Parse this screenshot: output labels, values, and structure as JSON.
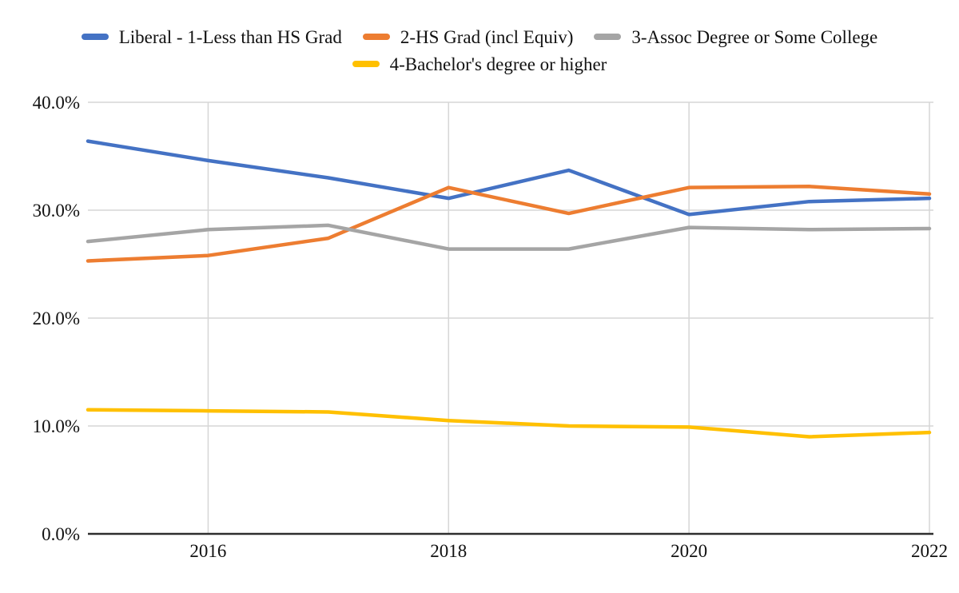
{
  "chart_data": {
    "type": "line",
    "title": "",
    "xlabel": "",
    "ylabel": "",
    "x": [
      2015,
      2016,
      2017,
      2018,
      2019,
      2020,
      2021,
      2022
    ],
    "series": [
      {
        "name": "Liberal - 1-Less than HS Grad",
        "color": "#4472C4",
        "values": [
          36.4,
          34.6,
          33.0,
          31.1,
          33.7,
          29.6,
          30.8,
          31.1
        ]
      },
      {
        "name": "2-HS Grad (incl Equiv)",
        "color": "#ED7D31",
        "values": [
          25.3,
          25.8,
          27.4,
          32.1,
          29.7,
          32.1,
          32.2,
          31.5
        ]
      },
      {
        "name": "3-Assoc Degree or Some College",
        "color": "#A5A5A5",
        "values": [
          27.1,
          28.2,
          28.6,
          26.4,
          26.4,
          28.4,
          28.2,
          28.3
        ]
      },
      {
        "name": "4-Bachelor's degree or higher",
        "color": "#FFC000",
        "values": [
          11.5,
          11.4,
          11.3,
          10.5,
          10.0,
          9.9,
          9.0,
          9.4
        ]
      }
    ],
    "xlim": [
      2015,
      2022
    ],
    "ylim": [
      0,
      40
    ],
    "x_ticks": [
      {
        "value": 2016,
        "label": "2016"
      },
      {
        "value": 2018,
        "label": "2018"
      },
      {
        "value": 2020,
        "label": "2020"
      },
      {
        "value": 2022,
        "label": "2022"
      }
    ],
    "y_ticks": [
      {
        "value": 40,
        "label": "40.0%"
      },
      {
        "value": 30,
        "label": "30.0%"
      },
      {
        "value": 20,
        "label": "20.0%"
      },
      {
        "value": 10,
        "label": "10.0%"
      },
      {
        "value": 0,
        "label": "0.0%"
      }
    ],
    "grid": true,
    "legend_position": "top"
  },
  "styles": {
    "background": "#ffffff",
    "grid_color": "#d6d6d6",
    "axis_color": "#2e2e2e",
    "text_color": "#111111",
    "line_width": 4.5
  }
}
